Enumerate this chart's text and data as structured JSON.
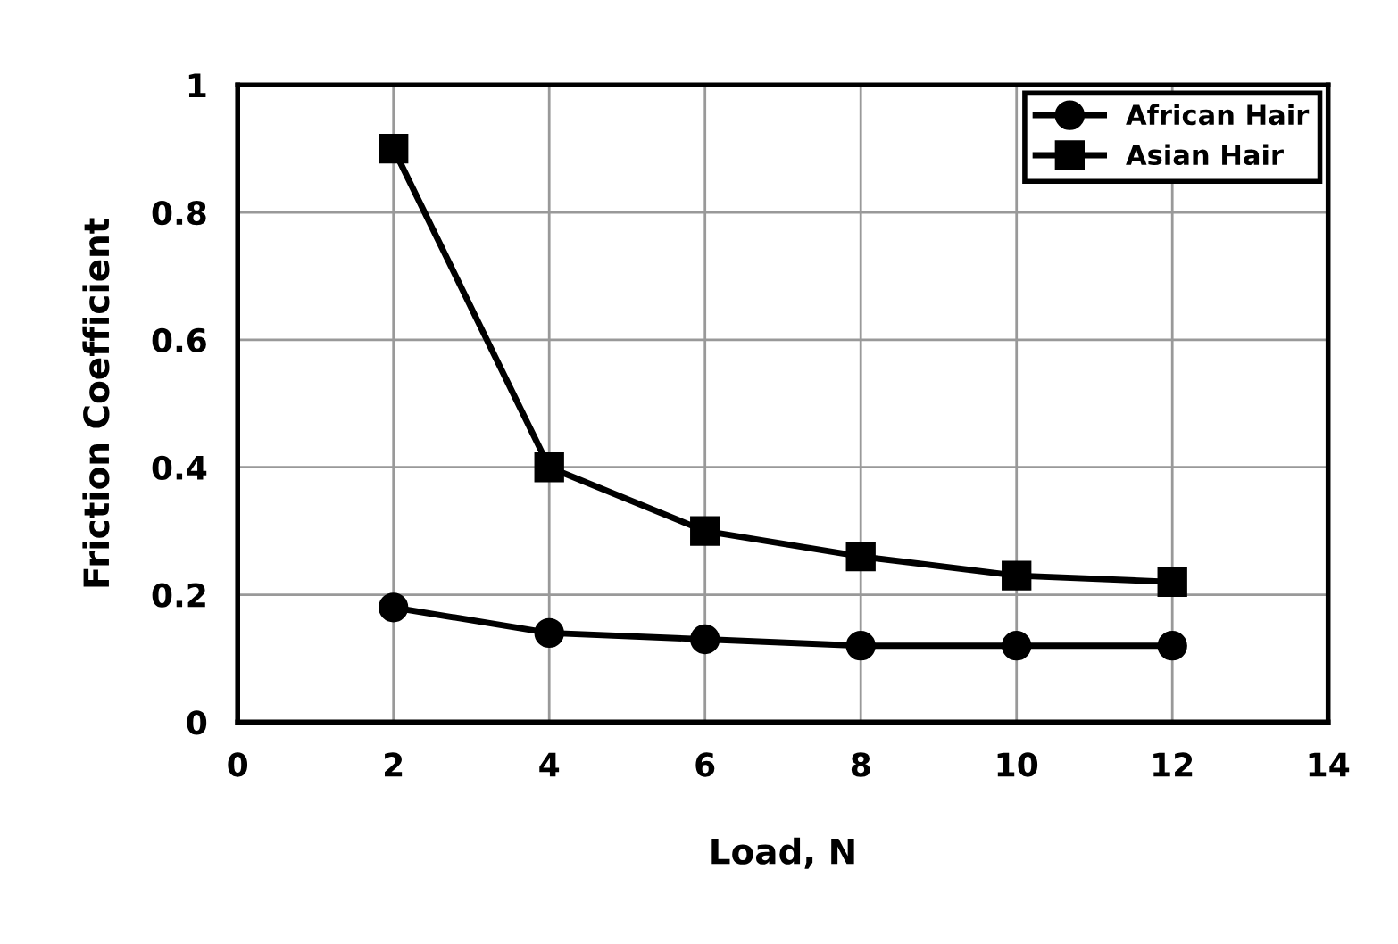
{
  "chart_data": {
    "type": "line",
    "xlabel": "Load, N",
    "ylabel": "Friction Coefficient",
    "x": [
      2,
      4,
      6,
      8,
      10,
      12
    ],
    "series": [
      {
        "name": "African Hair",
        "color": "#000000",
        "marker": "circle",
        "values": [
          0.18,
          0.14,
          0.13,
          0.12,
          0.12,
          0.12
        ]
      },
      {
        "name": "Asian Hair",
        "color": "#000000",
        "marker": "square",
        "values": [
          0.9,
          0.4,
          0.3,
          0.26,
          0.23,
          0.22
        ]
      }
    ],
    "xlim": [
      0,
      14
    ],
    "xticks": [
      0,
      2,
      4,
      6,
      8,
      10,
      12,
      14
    ],
    "ylim": [
      0,
      1
    ],
    "yticks": [
      0,
      0.2,
      0.4,
      0.6,
      0.8,
      1
    ],
    "grid": true,
    "legend": "top right",
    "line_style": "solid"
  }
}
